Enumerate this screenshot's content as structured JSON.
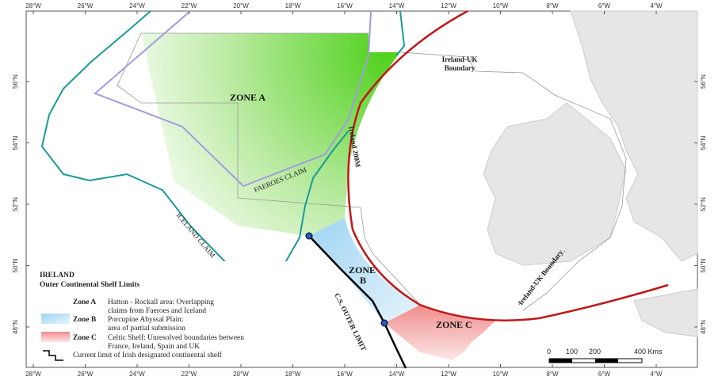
{
  "map": {
    "longitude_labels": [
      "28°W",
      "26°W",
      "24°W",
      "22°W",
      "20°W",
      "18°W",
      "16°W",
      "14°W",
      "12°W",
      "10°W",
      "8°W",
      "6°W",
      "4°W"
    ],
    "latitude_labels": [
      "56°N",
      "54°N",
      "52°N",
      "50°N",
      "48°N"
    ],
    "zones": {
      "a": "ZONE A",
      "b": [
        "ZONE",
        "B"
      ],
      "c": "ZONE C"
    },
    "line_labels": {
      "ireland_uk_boundary_north": [
        "Ireland-UK",
        "Boundary"
      ],
      "ireland_200m": "Ireland 200M",
      "faeroes_claim": "FAEROES CLAIM",
      "iceland_claim": "ICELAND CLAIM",
      "cs_outer_limit": "C.S. OUTER LIMIT",
      "ireland_uk_boundary_south": "Ireland-UK Boundary"
    }
  },
  "legend": {
    "title": "IRELAND",
    "subtitle": "Outer Continental Shelf Limits",
    "items": [
      {
        "name": "Zone A",
        "description": [
          "Hatton - Rockall area: Overlapping",
          "claims from Faeroes and Iceland"
        ]
      },
      {
        "name": "Zone B",
        "description": [
          "Porcupine Abyssal Plain:",
          "area of partial submission"
        ]
      },
      {
        "name": "Zone C",
        "description": [
          "Celtic Shelf: Unresolved boundaries between",
          "France, Ireland, Spain and UK"
        ]
      }
    ],
    "current_limit": "Current limit of Irish designated continental shelf"
  },
  "scale_bar": {
    "labels": [
      "0",
      "100",
      "200",
      "400 Kms"
    ]
  }
}
